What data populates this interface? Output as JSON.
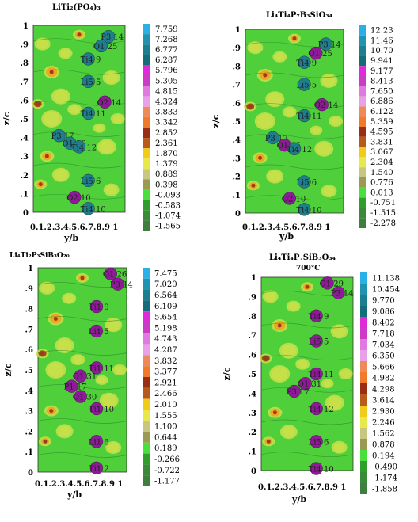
{
  "colors": {
    "field": "#4fcf3a",
    "ridge": "#c8e04a",
    "hot": "#f2a21e",
    "core": "#a03a1a",
    "atom_ti": "#1f7e8c",
    "atom_o": "#8e1a98"
  },
  "chart_data": [
    {
      "type": "heatmap",
      "title": "LiTi₂(PO₄)₃",
      "subtitle": "",
      "xlabel": "y/b",
      "ylabel": "z/c",
      "xticks_label": "0.1.2.3.4.5.6.7.8.9 1",
      "yticks": [
        "0",
        ".1",
        ".2",
        ".3",
        ".4",
        ".5",
        ".6",
        ".7",
        ".8",
        ".9",
        "1"
      ],
      "colorbar": [
        "7.759",
        "7.268",
        "6.777",
        "6.287",
        "5.796",
        "5.305",
        "4.815",
        "4.324",
        "3.833",
        "3.342",
        "2.852",
        "2.361",
        "1.870",
        "1.379",
        "0.889",
        "0.398",
        "-0.093",
        "-0.583",
        "-1.074",
        "-1.565"
      ],
      "atoms": [
        {
          "label": "P3 14",
          "x": 0.82,
          "y": 0.94,
          "type": "ti"
        },
        {
          "label": "O1 25",
          "x": 0.74,
          "y": 0.89,
          "type": "ti"
        },
        {
          "label": "Ti4 9",
          "x": 0.6,
          "y": 0.82,
          "type": "ti"
        },
        {
          "label": "Li5 5",
          "x": 0.6,
          "y": 0.7,
          "type": "ti"
        },
        {
          "label": "O2 14",
          "x": 0.78,
          "y": 0.59,
          "type": "o"
        },
        {
          "label": "Ti4 11",
          "x": 0.6,
          "y": 0.53,
          "type": "ti"
        },
        {
          "label": "P3 17",
          "x": 0.28,
          "y": 0.41,
          "type": "ti"
        },
        {
          "label": "O1 30",
          "x": 0.4,
          "y": 0.37,
          "type": "ti"
        },
        {
          "label": "Ti4 12",
          "x": 0.5,
          "y": 0.35,
          "type": "ti"
        },
        {
          "label": "Li5 6",
          "x": 0.6,
          "y": 0.17,
          "type": "ti"
        },
        {
          "label": "O2 10",
          "x": 0.45,
          "y": 0.08,
          "type": "o"
        },
        {
          "label": "Ti4 10",
          "x": 0.6,
          "y": 0.02,
          "type": "ti"
        }
      ]
    },
    {
      "type": "heatmap",
      "title": "Li₄Ti₄P₇B₃SiO₃₄",
      "subtitle": "",
      "xlabel": "y/b",
      "ylabel": "z/c",
      "xticks_label": "0.1.2.3.4.5.6.7.8.9 1",
      "yticks": [
        "0",
        ".1",
        ".2",
        ".3",
        ".4",
        ".5",
        ".6",
        ".7",
        ".8",
        ".9",
        "1"
      ],
      "colorbar": [
        "12.23",
        "11.46",
        "10.70",
        "9.941",
        "9.177",
        "8.413",
        "7.650",
        "6.886",
        "6.122",
        "5.359",
        "4.595",
        "3.831",
        "3.067",
        "2.304",
        "1.540",
        "0.776",
        "0.013",
        "-0.751",
        "-1.515",
        "-2.278"
      ],
      "atoms": [
        {
          "label": "P3 14",
          "x": 0.82,
          "y": 0.92,
          "type": "ti"
        },
        {
          "label": "O1 25",
          "x": 0.72,
          "y": 0.87,
          "type": "o"
        },
        {
          "label": "Ti4 9",
          "x": 0.6,
          "y": 0.82,
          "type": "ti"
        },
        {
          "label": "Li5 5",
          "x": 0.6,
          "y": 0.7,
          "type": "ti"
        },
        {
          "label": "O2 14",
          "x": 0.78,
          "y": 0.59,
          "type": "o"
        },
        {
          "label": "Ti4 11",
          "x": 0.6,
          "y": 0.53,
          "type": "ti"
        },
        {
          "label": "P3 17",
          "x": 0.28,
          "y": 0.41,
          "type": "ti"
        },
        {
          "label": "O1 35",
          "x": 0.4,
          "y": 0.37,
          "type": "o"
        },
        {
          "label": "Ti4 12",
          "x": 0.5,
          "y": 0.35,
          "type": "ti"
        },
        {
          "label": "Li5 6",
          "x": 0.6,
          "y": 0.17,
          "type": "ti"
        },
        {
          "label": "O2 10",
          "x": 0.45,
          "y": 0.08,
          "type": "o"
        },
        {
          "label": "Ti4 10",
          "x": 0.6,
          "y": 0.02,
          "type": "ti"
        }
      ]
    },
    {
      "type": "heatmap",
      "title": "Li₄Ti₂P₃SiB₃O₂₀",
      "subtitle": "",
      "xlabel": "y/b",
      "ylabel": "z/c",
      "xticks_label": "0.1.2.3.4.5.6.7.8.9 1",
      "yticks": [
        "0",
        ".1",
        ".2",
        ".3",
        ".4",
        ".5",
        ".6",
        ".7",
        ".8",
        ".9",
        "1"
      ],
      "colorbar": [
        "7.475",
        "7.020",
        "6.564",
        "6.109",
        "5.654",
        "5.198",
        "4.743",
        "4.287",
        "3.832",
        "3.377",
        "2.921",
        "2.466",
        "2.010",
        "1.555",
        "1.100",
        "0.644",
        "0.189",
        "-0.266",
        "-0.722",
        "-1.177"
      ],
      "atoms": [
        {
          "label": "O1 26",
          "x": 0.82,
          "y": 0.97,
          "type": "o"
        },
        {
          "label": "P3 14",
          "x": 0.9,
          "y": 0.92,
          "type": "o"
        },
        {
          "label": "Ti1 9",
          "x": 0.66,
          "y": 0.81,
          "type": "o"
        },
        {
          "label": "Li1 5",
          "x": 0.66,
          "y": 0.69,
          "type": "o"
        },
        {
          "label": "Ti1 11",
          "x": 0.66,
          "y": 0.51,
          "type": "o"
        },
        {
          "label": "O1 31",
          "x": 0.48,
          "y": 0.47,
          "type": "o"
        },
        {
          "label": "P1 17",
          "x": 0.38,
          "y": 0.42,
          "type": "o"
        },
        {
          "label": "O1 30",
          "x": 0.48,
          "y": 0.37,
          "type": "o"
        },
        {
          "label": "Ti1 10",
          "x": 0.66,
          "y": 0.31,
          "type": "o"
        },
        {
          "label": "Li1 6",
          "x": 0.66,
          "y": 0.15,
          "type": "o"
        },
        {
          "label": "Ti1 2",
          "x": 0.66,
          "y": 0.02,
          "type": "o"
        }
      ]
    },
    {
      "type": "heatmap",
      "title": "Li₄Ti₄P₇SiB₃O₃₄",
      "subtitle": "700°C",
      "xlabel": "y/b",
      "ylabel": "z/c",
      "xticks_label": "0.1.2.3.4.5.6.7.8.9 1",
      "yticks": [
        "0",
        ".1",
        ".2",
        ".3",
        ".4",
        ".5",
        ".6",
        ".7",
        ".8",
        ".9",
        "1"
      ],
      "colorbar": [
        "11.138",
        "10.454",
        "9.770",
        "9.086",
        "8.402",
        "7.718",
        "7.034",
        "6.350",
        "5.666",
        "4.982",
        "4.298",
        "3.614",
        "2.930",
        "2.246",
        "1.562",
        "0.878",
        "0.194",
        "-0.490",
        "-1.174",
        "-1.858"
      ],
      "atoms": [
        {
          "label": "O1 29",
          "x": 0.72,
          "y": 0.97,
          "type": "o"
        },
        {
          "label": "P3 14",
          "x": 0.84,
          "y": 0.92,
          "type": "o"
        },
        {
          "label": "Ti4 9",
          "x": 0.6,
          "y": 0.8,
          "type": "o"
        },
        {
          "label": "Li5 5",
          "x": 0.6,
          "y": 0.67,
          "type": "o"
        },
        {
          "label": "Ti4 11",
          "x": 0.6,
          "y": 0.5,
          "type": "o"
        },
        {
          "label": "O1 31",
          "x": 0.48,
          "y": 0.45,
          "type": "o"
        },
        {
          "label": "P3 17",
          "x": 0.36,
          "y": 0.41,
          "type": "o"
        },
        {
          "label": "Ti4 12",
          "x": 0.6,
          "y": 0.32,
          "type": "o"
        },
        {
          "label": "Li5 6",
          "x": 0.6,
          "y": 0.15,
          "type": "o"
        },
        {
          "label": "Ti4 10",
          "x": 0.6,
          "y": 0.01,
          "type": "o"
        }
      ]
    }
  ]
}
